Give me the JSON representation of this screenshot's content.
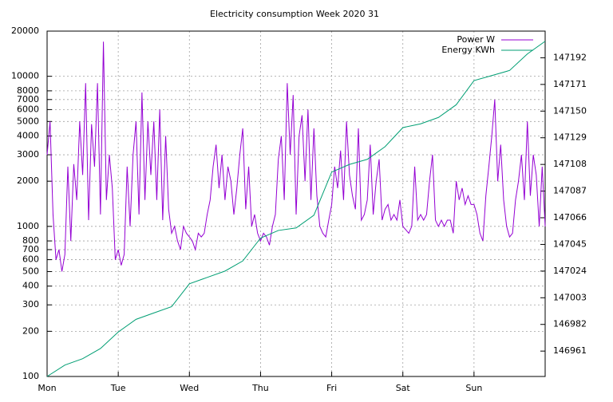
{
  "chart_data": {
    "type": "line",
    "title": "Electricity consumption Week 2020 31",
    "log_y": true,
    "grid": true,
    "legend": "top-right",
    "xlim": [
      0,
      168
    ],
    "xticks": [
      {
        "value": 0,
        "label": "Mon"
      },
      {
        "value": 24,
        "label": "Tue"
      },
      {
        "value": 48,
        "label": "Wed"
      },
      {
        "value": 72,
        "label": "Thu"
      },
      {
        "value": 96,
        "label": "Fri"
      },
      {
        "value": 120,
        "label": "Sat"
      },
      {
        "value": 144,
        "label": "Sun"
      }
    ],
    "ylim": [
      100,
      20000
    ],
    "yticks": [
      100,
      200,
      300,
      400,
      500,
      600,
      700,
      800,
      1000,
      2000,
      3000,
      4000,
      5000,
      6000,
      7000,
      8000,
      10000,
      20000
    ],
    "y2lim": [
      146941,
      147213
    ],
    "y2ticks": [
      146961,
      146982,
      147003,
      147024,
      147045,
      147066,
      147087,
      147108,
      147129,
      147150,
      147171,
      147192
    ],
    "series": [
      {
        "name": "Power W",
        "color": "#9400d3",
        "x": [
          0,
          1,
          2,
          3,
          4,
          5,
          6,
          7,
          8,
          9,
          10,
          11,
          12,
          13,
          14,
          15,
          16,
          17,
          18,
          19,
          20,
          21,
          22,
          23,
          24,
          25,
          26,
          27,
          28,
          29,
          30,
          31,
          32,
          33,
          34,
          35,
          36,
          37,
          38,
          39,
          40,
          41,
          42,
          43,
          44,
          45,
          46,
          47,
          48,
          49,
          50,
          51,
          52,
          53,
          54,
          55,
          56,
          57,
          58,
          59,
          60,
          61,
          62,
          63,
          64,
          65,
          66,
          67,
          68,
          69,
          70,
          71,
          72,
          73,
          74,
          75,
          76,
          77,
          78,
          79,
          80,
          81,
          82,
          83,
          84,
          85,
          86,
          87,
          88,
          89,
          90,
          91,
          92,
          93,
          94,
          95,
          96,
          97,
          98,
          99,
          100,
          101,
          102,
          103,
          104,
          105,
          106,
          107,
          108,
          109,
          110,
          111,
          112,
          113,
          114,
          115,
          116,
          117,
          118,
          119,
          120,
          121,
          122,
          123,
          124,
          125,
          126,
          127,
          128,
          129,
          130,
          131,
          132,
          133,
          134,
          135,
          136,
          137,
          138,
          139,
          140,
          141,
          142,
          143,
          144,
          145,
          146,
          147,
          148,
          149,
          150,
          151,
          152,
          153,
          154,
          155,
          156,
          157,
          158,
          159,
          160,
          161,
          162,
          163,
          164,
          165,
          166,
          167,
          168
        ],
        "values": [
          3000,
          5000,
          1200,
          600,
          700,
          500,
          650,
          2500,
          800,
          2600,
          1500,
          5000,
          2200,
          9000,
          1100,
          4800,
          2500,
          9000,
          1200,
          17000,
          1500,
          3000,
          1800,
          600,
          700,
          550,
          650,
          2500,
          1000,
          3000,
          5000,
          1200,
          7800,
          1500,
          5000,
          2200,
          5000,
          1500,
          6000,
          1100,
          4000,
          1300,
          900,
          1000,
          800,
          700,
          1000,
          900,
          850,
          800,
          700,
          900,
          850,
          900,
          1200,
          1500,
          2500,
          3500,
          1800,
          3000,
          1500,
          2500,
          2000,
          1200,
          1800,
          3000,
          4500,
          1300,
          2500,
          1000,
          1200,
          900,
          800,
          900,
          850,
          750,
          1000,
          1200,
          2800,
          4000,
          1500,
          9000,
          3000,
          7500,
          1200,
          4000,
          5500,
          2000,
          6000,
          1500,
          4500,
          1600,
          1000,
          900,
          850,
          1100,
          1400,
          2500,
          1800,
          3200,
          1500,
          5000,
          2200,
          1600,
          1300,
          4500,
          1100,
          1200,
          1500,
          3500,
          1200,
          2000,
          2800,
          1100,
          1300,
          1400,
          1100,
          1200,
          1100,
          1500,
          1000,
          950,
          900,
          1000,
          2500,
          1100,
          1200,
          1100,
          1200,
          2000,
          3000,
          1100,
          1000,
          1100,
          1000,
          1100,
          1100,
          900,
          2000,
          1500,
          1800,
          1400,
          1600,
          1400,
          1400,
          1200,
          900,
          800,
          1600,
          2500,
          4000,
          7000,
          2000,
          3500,
          1500,
          1000,
          850,
          900,
          1500,
          2000,
          3000,
          1500,
          5000,
          1600,
          3000,
          2200,
          1000,
          2500,
          1000
        ]
      },
      {
        "name": "Energy KWh",
        "color": "#009e73",
        "axis": "y2",
        "x": [
          0,
          6,
          12,
          18,
          24,
          30,
          36,
          42,
          48,
          54,
          60,
          66,
          72,
          78,
          84,
          90,
          96,
          102,
          108,
          114,
          120,
          126,
          132,
          138,
          144,
          150,
          156,
          162,
          168
        ],
        "values": [
          146941,
          146950,
          146955,
          146963,
          146976,
          146986,
          146991,
          146996,
          147014,
          147019,
          147024,
          147032,
          147050,
          147056,
          147058,
          147068,
          147102,
          147108,
          147112,
          147122,
          147137,
          147140,
          147145,
          147155,
          147174,
          147178,
          147182,
          147195,
          147205
        ]
      }
    ]
  }
}
